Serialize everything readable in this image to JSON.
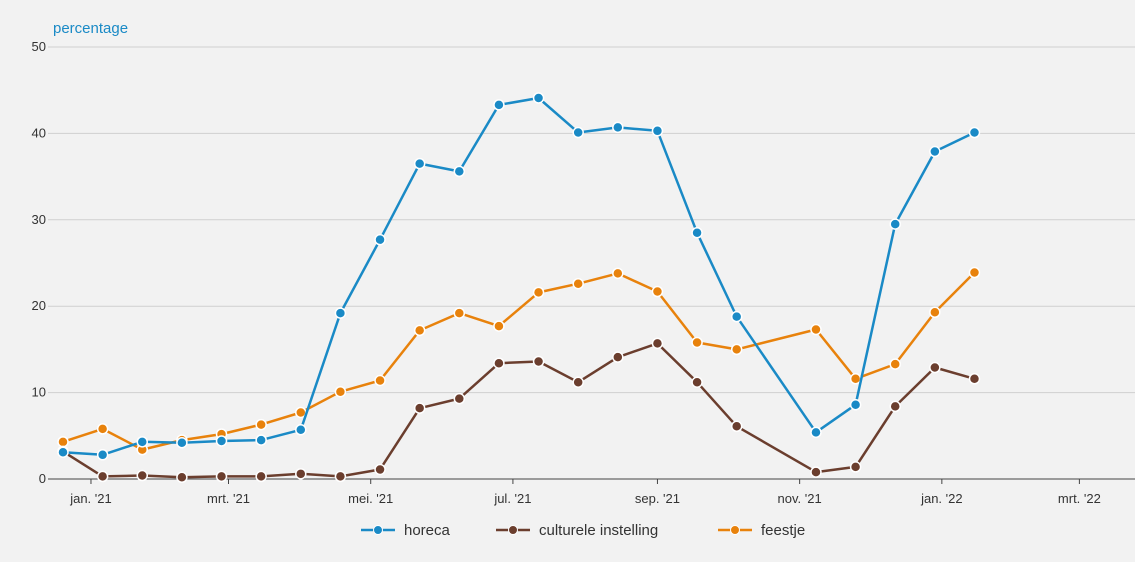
{
  "chart_data": {
    "type": "line",
    "title": "",
    "ylabel": "percentage",
    "ylim": [
      0,
      50
    ],
    "yticks": [
      0,
      10,
      20,
      30,
      40,
      50
    ],
    "grid": true,
    "legend_position": "bottom",
    "x": [
      "2020-12-20",
      "2021-01-06",
      "2021-01-23",
      "2021-02-09",
      "2021-02-26",
      "2021-03-15",
      "2021-04-01",
      "2021-04-18",
      "2021-05-05",
      "2021-05-22",
      "2021-06-08",
      "2021-06-25",
      "2021-07-12",
      "2021-07-29",
      "2021-08-15",
      "2021-09-01",
      "2021-09-18",
      "2021-10-05",
      "2021-10-22",
      "2021-11-08",
      "2021-11-25",
      "2021-12-12",
      "2021-12-29",
      "2022-01-15",
      "2022-02-01",
      "2022-02-18",
      "2022-03-07",
      "2022-03-24"
    ],
    "xticks": [
      {
        "label": "jan. '21",
        "date": "2021-01-01"
      },
      {
        "label": "mrt. '21",
        "date": "2021-03-01"
      },
      {
        "label": "mei. '21",
        "date": "2021-05-01"
      },
      {
        "label": "jul. '21",
        "date": "2021-07-01"
      },
      {
        "label": "sep. '21",
        "date": "2021-09-01"
      },
      {
        "label": "nov. '21",
        "date": "2021-11-01"
      },
      {
        "label": "jan. '22",
        "date": "2022-01-01"
      },
      {
        "label": "mrt. '22",
        "date": "2022-03-01"
      }
    ],
    "series": [
      {
        "name": "horeca",
        "color": "#1a8ac6",
        "values": [
          3.1,
          2.8,
          4.3,
          4.2,
          4.4,
          4.5,
          5.7,
          19.2,
          27.7,
          36.5,
          35.6,
          43.3,
          44.1,
          40.1,
          40.7,
          40.3,
          28.5,
          18.8,
          null,
          5.4,
          8.6,
          29.5,
          37.9,
          40.1,
          null,
          null,
          null,
          null
        ]
      },
      {
        "name": "culturele instelling",
        "color": "#6b3e2e",
        "values": [
          3.2,
          0.3,
          0.4,
          0.2,
          0.3,
          0.3,
          0.6,
          0.3,
          1.1,
          8.2,
          9.3,
          13.4,
          13.6,
          11.2,
          14.1,
          15.7,
          11.2,
          6.1,
          null,
          0.8,
          1.4,
          8.4,
          12.9,
          11.6,
          null,
          null,
          null,
          null
        ]
      },
      {
        "name": "feestje",
        "color": "#e8820c",
        "values": [
          4.3,
          5.8,
          3.4,
          4.5,
          5.2,
          6.3,
          7.7,
          10.1,
          11.4,
          17.2,
          19.2,
          17.7,
          21.6,
          22.6,
          23.8,
          21.7,
          15.8,
          15.0,
          null,
          17.3,
          11.6,
          13.3,
          19.3,
          23.9,
          null,
          null,
          null,
          null
        ]
      }
    ]
  }
}
